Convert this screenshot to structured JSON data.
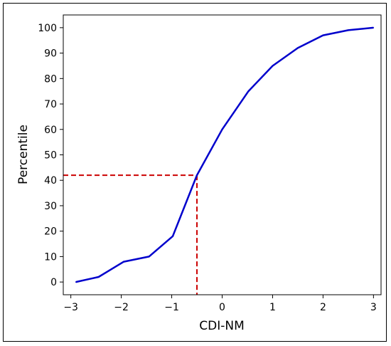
{
  "chart_data": {
    "type": "line",
    "xlabel": "CDI-NM",
    "ylabel": "Percentile",
    "xlim": [
      -3.15,
      3.15
    ],
    "ylim": [
      -5,
      105
    ],
    "xticks": [
      -3,
      -2,
      -1,
      0,
      1,
      2,
      3
    ],
    "xtick_labels": [
      "−3",
      "−2",
      "−1",
      "0",
      "1",
      "2",
      "3"
    ],
    "yticks": [
      0,
      10,
      20,
      30,
      40,
      50,
      60,
      70,
      80,
      90,
      100
    ],
    "ytick_labels": [
      "0",
      "10",
      "20",
      "30",
      "40",
      "50",
      "60",
      "70",
      "80",
      "90",
      "100"
    ],
    "grid": false,
    "series": [
      {
        "x": [
          -2.9,
          -2.45,
          -1.95,
          -1.45,
          -0.98,
          -0.5,
          0.0,
          0.52,
          1.0,
          1.5,
          2.0,
          2.5,
          3.0
        ],
        "y": [
          0,
          2,
          8,
          10,
          18,
          42,
          60,
          75,
          85,
          92,
          97,
          99,
          100
        ],
        "color": "#0000cc"
      }
    ],
    "reference": {
      "x": -0.5,
      "y": 42,
      "color": "#cc0000",
      "style": "dashed"
    }
  }
}
